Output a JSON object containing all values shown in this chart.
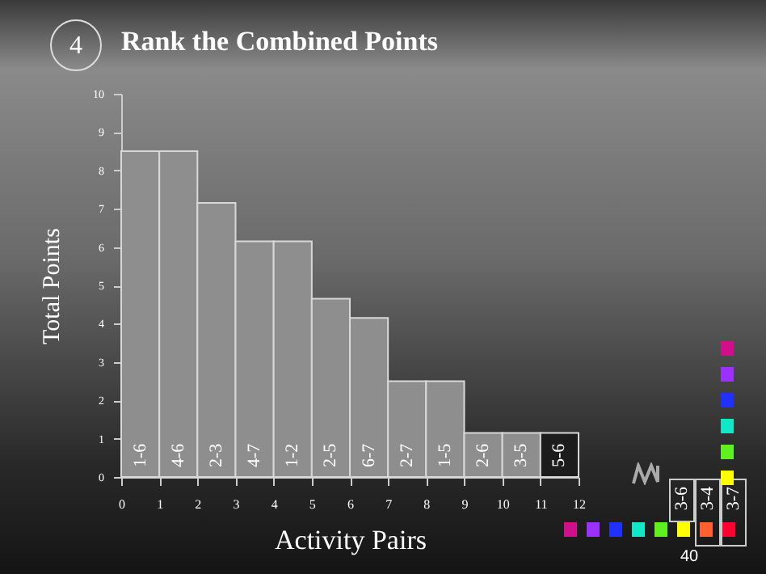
{
  "chart_data": {
    "type": "histogram",
    "title": "Rank the Combined Points",
    "xlabel": "Activity Pairs",
    "ylabel": "Total Points",
    "bins": [
      0,
      1,
      2,
      3,
      4,
      5,
      6,
      7,
      8,
      9,
      10,
      11,
      12
    ],
    "values": [
      8.5,
      8.5,
      7.15,
      6.15,
      6.15,
      4.65,
      4.15,
      2.5,
      2.5,
      1.15,
      1.15,
      1.15
    ],
    "colors": [
      "#8e8e8e",
      "#8e8e8e",
      "#8e8e8e",
      "#8e8e8e",
      "#8e8e8e",
      "#8e8e8e",
      "#8e8e8e",
      "#8e8e8e",
      "#8e8e8e",
      "#8e8e8e",
      "#8e8e8e",
      "#1c1c1c"
    ],
    "xlim": [
      0,
      12
    ],
    "xticks": [
      0,
      1,
      2,
      3,
      4,
      5,
      6,
      7,
      8,
      9,
      10,
      11,
      12
    ],
    "ylim": [
      0,
      10
    ],
    "yticks": [
      0,
      1,
      2,
      3,
      4,
      5,
      6,
      7,
      8,
      9,
      10
    ],
    "grid": false,
    "annotations": [
      "4",
      {
        "text": "1-6",
        "x": 0.5,
        "y": 0
      },
      {
        "text": "4-6",
        "x": 1.5,
        "y": 0
      },
      {
        "text": "2-3",
        "x": 2.5,
        "y": 0
      },
      {
        "text": "4-7",
        "x": 3.5,
        "y": 0
      },
      {
        "text": "1-2",
        "x": 4.5,
        "y": 0
      },
      {
        "text": "2-5",
        "x": 5.5,
        "y": 0
      },
      {
        "text": "6-7",
        "x": 6.5,
        "y": 0
      },
      {
        "text": "2-7",
        "x": 7.5,
        "y": 0
      },
      {
        "text": "1-5",
        "x": 8.5,
        "y": 0
      },
      {
        "text": "2-6",
        "x": 9.5,
        "y": 0
      },
      {
        "text": "3-5",
        "x": 10.5,
        "y": 0
      },
      {
        "text": "5-6",
        "x": 11.5,
        "y": 0
      },
      "3-6",
      "3-4",
      "3-7",
      "40"
    ]
  }
}
